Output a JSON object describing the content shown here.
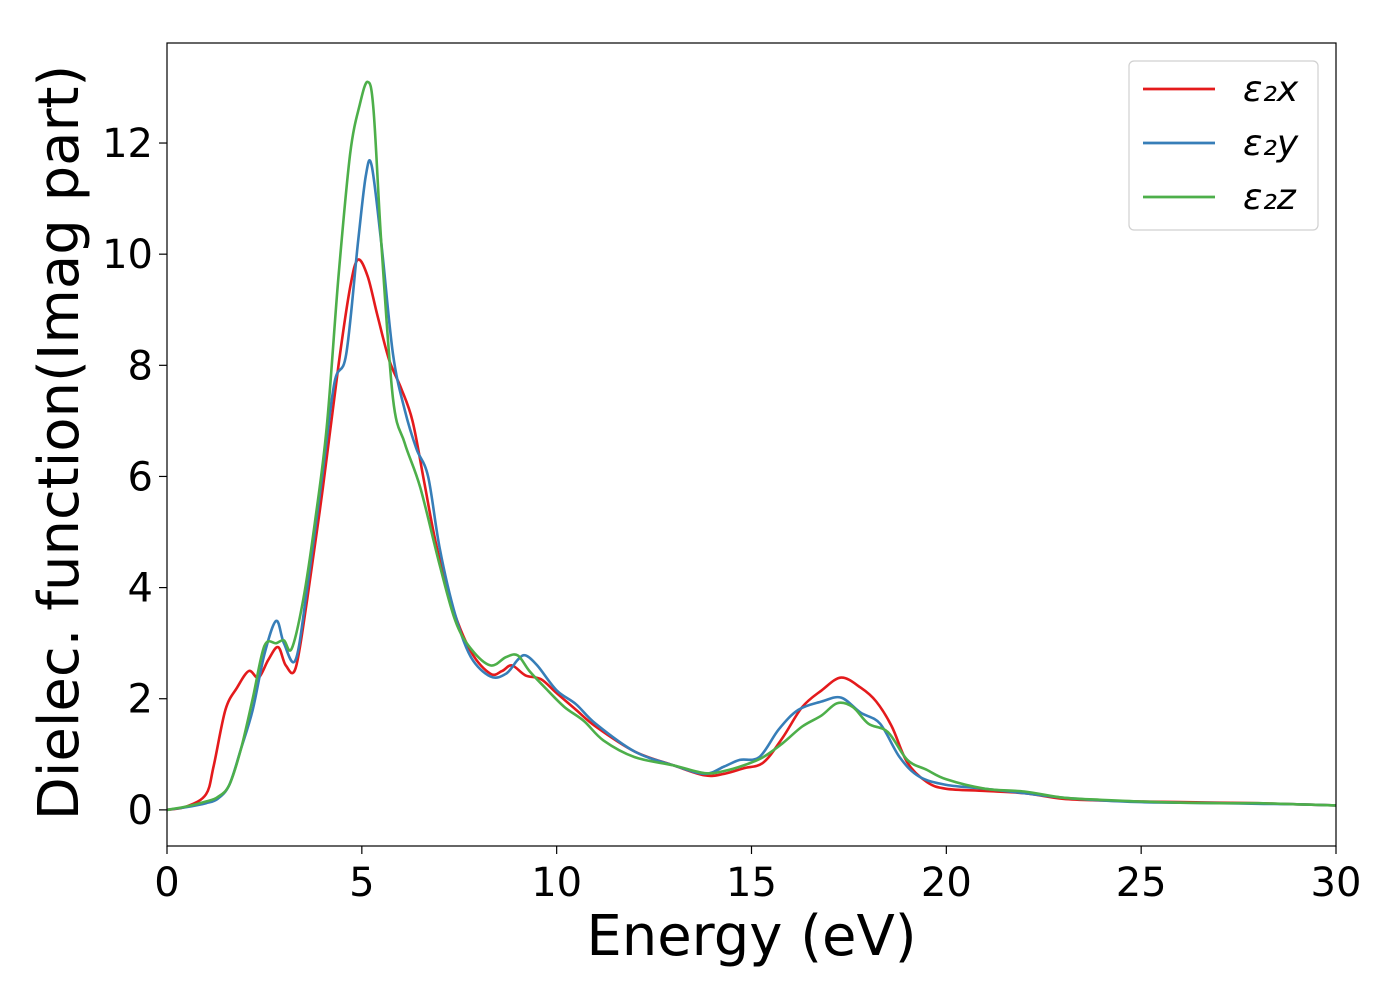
{
  "chart_data": {
    "type": "line",
    "title": "",
    "xlabel": "Energy (eV)",
    "ylabel": "Dielec. function(Imag part)",
    "xlim": [
      0,
      30
    ],
    "ylim": [
      -0.65,
      13.8
    ],
    "xticks": [
      0,
      5,
      10,
      15,
      20,
      25,
      30
    ],
    "yticks": [
      0,
      2,
      4,
      6,
      8,
      10,
      12
    ],
    "grid": false,
    "legend_position": "top-right",
    "series": [
      {
        "name": "ε₂x",
        "color": "#e41a1c",
        "x": [
          0,
          0.5,
          1.0,
          1.2,
          1.5,
          1.8,
          2.1,
          2.35,
          2.6,
          2.85,
          3.05,
          3.3,
          3.6,
          4.0,
          4.4,
          4.7,
          4.9,
          5.15,
          5.4,
          5.7,
          6.0,
          6.3,
          6.6,
          6.9,
          7.3,
          7.8,
          8.3,
          8.6,
          8.85,
          9.2,
          9.6,
          10.0,
          10.5,
          11.0,
          12.0,
          13.0,
          13.8,
          14.3,
          14.8,
          15.3,
          15.8,
          16.3,
          16.8,
          17.3,
          17.8,
          18.2,
          18.6,
          19.0,
          19.5,
          20.0,
          21.0,
          22.0,
          23.0,
          24.0,
          25.0,
          26.0,
          27.0,
          28.0,
          29.0,
          30.0
        ],
        "y": [
          0,
          0.06,
          0.28,
          0.8,
          1.8,
          2.2,
          2.5,
          2.38,
          2.7,
          2.93,
          2.6,
          2.55,
          3.8,
          5.8,
          8.0,
          9.4,
          9.9,
          9.6,
          8.9,
          8.1,
          7.6,
          7.0,
          5.9,
          4.8,
          3.7,
          2.85,
          2.45,
          2.5,
          2.6,
          2.42,
          2.35,
          2.1,
          1.8,
          1.5,
          1.05,
          0.8,
          0.62,
          0.65,
          0.75,
          0.85,
          1.3,
          1.85,
          2.15,
          2.38,
          2.2,
          1.95,
          1.5,
          0.85,
          0.5,
          0.38,
          0.34,
          0.3,
          0.2,
          0.17,
          0.15,
          0.14,
          0.13,
          0.12,
          0.1,
          0.08
        ]
      },
      {
        "name": "ε₂y",
        "color": "#377eb8",
        "x": [
          0,
          0.5,
          1.0,
          1.3,
          1.6,
          1.9,
          2.2,
          2.5,
          2.8,
          3.0,
          3.3,
          3.6,
          4.0,
          4.3,
          4.6,
          4.9,
          5.1,
          5.25,
          5.5,
          5.8,
          6.1,
          6.4,
          6.7,
          7.0,
          7.4,
          7.8,
          8.3,
          8.7,
          9.0,
          9.2,
          9.5,
          10.0,
          10.5,
          11.0,
          12.0,
          13.0,
          13.8,
          14.3,
          14.7,
          15.2,
          15.7,
          16.2,
          16.8,
          17.3,
          17.8,
          18.3,
          18.8,
          19.3,
          20.0,
          21.0,
          22.0,
          23.0,
          24.0,
          25.0,
          26.0,
          27.0,
          28.0,
          29.0,
          30.0
        ],
        "y": [
          0,
          0.05,
          0.12,
          0.2,
          0.45,
          1.1,
          1.8,
          2.8,
          3.4,
          3.0,
          2.7,
          4.0,
          6.1,
          7.7,
          8.2,
          10.2,
          11.4,
          11.6,
          10.2,
          8.2,
          7.2,
          6.5,
          6.0,
          4.7,
          3.5,
          2.75,
          2.4,
          2.45,
          2.7,
          2.78,
          2.6,
          2.15,
          1.9,
          1.55,
          1.05,
          0.8,
          0.65,
          0.78,
          0.9,
          0.95,
          1.45,
          1.8,
          1.95,
          2.02,
          1.75,
          1.55,
          0.95,
          0.6,
          0.45,
          0.38,
          0.3,
          0.22,
          0.17,
          0.14,
          0.13,
          0.12,
          0.11,
          0.1,
          0.08
        ]
      },
      {
        "name": "ε₂z",
        "color": "#4daf4a",
        "x": [
          0,
          0.5,
          1.0,
          1.3,
          1.6,
          1.9,
          2.2,
          2.5,
          2.8,
          3.0,
          3.2,
          3.5,
          3.8,
          4.1,
          4.4,
          4.7,
          4.95,
          5.15,
          5.3,
          5.5,
          5.8,
          6.1,
          6.5,
          7.0,
          7.4,
          7.8,
          8.3,
          8.7,
          9.0,
          9.3,
          9.7,
          10.2,
          10.7,
          11.2,
          12.0,
          13.0,
          13.8,
          14.3,
          14.8,
          15.3,
          15.8,
          16.3,
          16.8,
          17.2,
          17.6,
          18.0,
          18.5,
          19.0,
          19.5,
          20.0,
          21.0,
          22.0,
          23.0,
          24.0,
          25.0,
          26.0,
          27.0,
          28.0,
          29.0,
          30.0
        ],
        "y": [
          0,
          0.06,
          0.15,
          0.23,
          0.45,
          1.1,
          2.0,
          2.95,
          3.0,
          3.05,
          2.9,
          3.8,
          5.2,
          6.9,
          9.6,
          11.8,
          12.7,
          13.1,
          12.6,
          10.2,
          7.4,
          6.6,
          5.8,
          4.4,
          3.4,
          2.9,
          2.6,
          2.75,
          2.78,
          2.5,
          2.2,
          1.85,
          1.6,
          1.25,
          0.95,
          0.8,
          0.66,
          0.7,
          0.8,
          0.95,
          1.2,
          1.5,
          1.7,
          1.92,
          1.85,
          1.55,
          1.4,
          0.9,
          0.72,
          0.55,
          0.38,
          0.33,
          0.22,
          0.18,
          0.15,
          0.13,
          0.12,
          0.12,
          0.1,
          0.08
        ]
      }
    ]
  }
}
